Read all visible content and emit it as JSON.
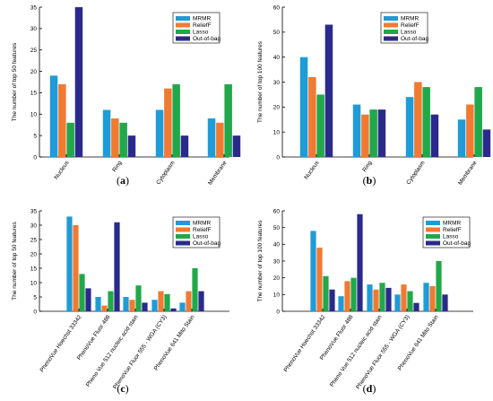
{
  "colors": {
    "MRMR": "#1f9bd8",
    "ReliefF": "#f07a32",
    "Lasso": "#21a84a",
    "Out-of-bag": "#2a2a8c"
  },
  "chart_data": [
    {
      "type": "bar",
      "panel": "(a)",
      "categories": [
        "Nucleus",
        "Ring",
        "Cytoplasm",
        "Membrane"
      ],
      "series": [
        {
          "name": "MRMR",
          "values": [
            19,
            11,
            11,
            9
          ]
        },
        {
          "name": "ReliefF",
          "values": [
            17,
            9,
            16,
            8
          ]
        },
        {
          "name": "Lasso",
          "values": [
            8,
            8,
            17,
            17
          ]
        },
        {
          "name": "Out-of-bag",
          "values": [
            35,
            5,
            5,
            5
          ]
        }
      ],
      "ylabel": "The number of top 50 features",
      "ylim": [
        0,
        35
      ],
      "yticks": [
        0,
        5,
        10,
        15,
        20,
        25,
        30,
        35
      ],
      "legend_position": "top-right",
      "grid": false
    },
    {
      "type": "bar",
      "panel": "(b)",
      "categories": [
        "Nucleus",
        "Ring",
        "Cytoplasm",
        "Membrane"
      ],
      "series": [
        {
          "name": "MRMR",
          "values": [
            40,
            21,
            24,
            15
          ]
        },
        {
          "name": "ReliefF",
          "values": [
            32,
            17,
            30,
            21
          ]
        },
        {
          "name": "Lasso",
          "values": [
            25,
            19,
            28,
            28
          ]
        },
        {
          "name": "Out-of-bag",
          "values": [
            53,
            19,
            17,
            11
          ]
        }
      ],
      "ylabel": "The number of top 100 features",
      "ylim": [
        0,
        60
      ],
      "yticks": [
        0,
        10,
        20,
        30,
        40,
        50,
        60
      ],
      "legend_position": "top-right",
      "grid": false
    },
    {
      "type": "bar",
      "panel": "(c)",
      "categories": [
        "PhenoVue Hoechst 33342",
        "PhenoVue Fluor 488",
        "Pheno Vue 512 nucleic acid stain",
        "PhenoVue Fluor 555 - WGA (CY3)",
        "PhenoVue 641 Mito Stain"
      ],
      "series": [
        {
          "name": "MRMR",
          "values": [
            33,
            5,
            5,
            4,
            3
          ]
        },
        {
          "name": "ReliefF",
          "values": [
            30,
            2,
            4,
            7,
            7
          ]
        },
        {
          "name": "Lasso",
          "values": [
            13,
            7,
            9,
            6,
            15
          ]
        },
        {
          "name": "Out-of-bag",
          "values": [
            8,
            31,
            3,
            1,
            7
          ]
        }
      ],
      "ylabel": "The number of top 50 features",
      "ylim": [
        0,
        35
      ],
      "yticks": [
        0,
        5,
        10,
        15,
        20,
        25,
        30,
        35
      ],
      "legend_position": "top-right",
      "grid": false
    },
    {
      "type": "bar",
      "panel": "(d)",
      "categories": [
        "PhenoVue Hoechst 33342",
        "PhenoVue Fluor 488",
        "Pheno Vue 512 nucleic acid stain",
        "PhenoVue Fluor 555 - WGA (CY3)",
        "PhenoVue 641 Mito Stain"
      ],
      "series": [
        {
          "name": "MRMR",
          "values": [
            48,
            9,
            16,
            10,
            17
          ]
        },
        {
          "name": "ReliefF",
          "values": [
            38,
            18,
            13,
            16,
            15
          ]
        },
        {
          "name": "Lasso",
          "values": [
            21,
            20,
            17,
            12,
            30
          ]
        },
        {
          "name": "Out-of-bag",
          "values": [
            13,
            58,
            14,
            5,
            10
          ]
        }
      ],
      "ylabel": "The number of top 100 features",
      "ylim": [
        0,
        60
      ],
      "yticks": [
        0,
        10,
        20,
        30,
        40,
        50,
        60
      ],
      "legend_position": "top-right",
      "grid": false
    }
  ]
}
